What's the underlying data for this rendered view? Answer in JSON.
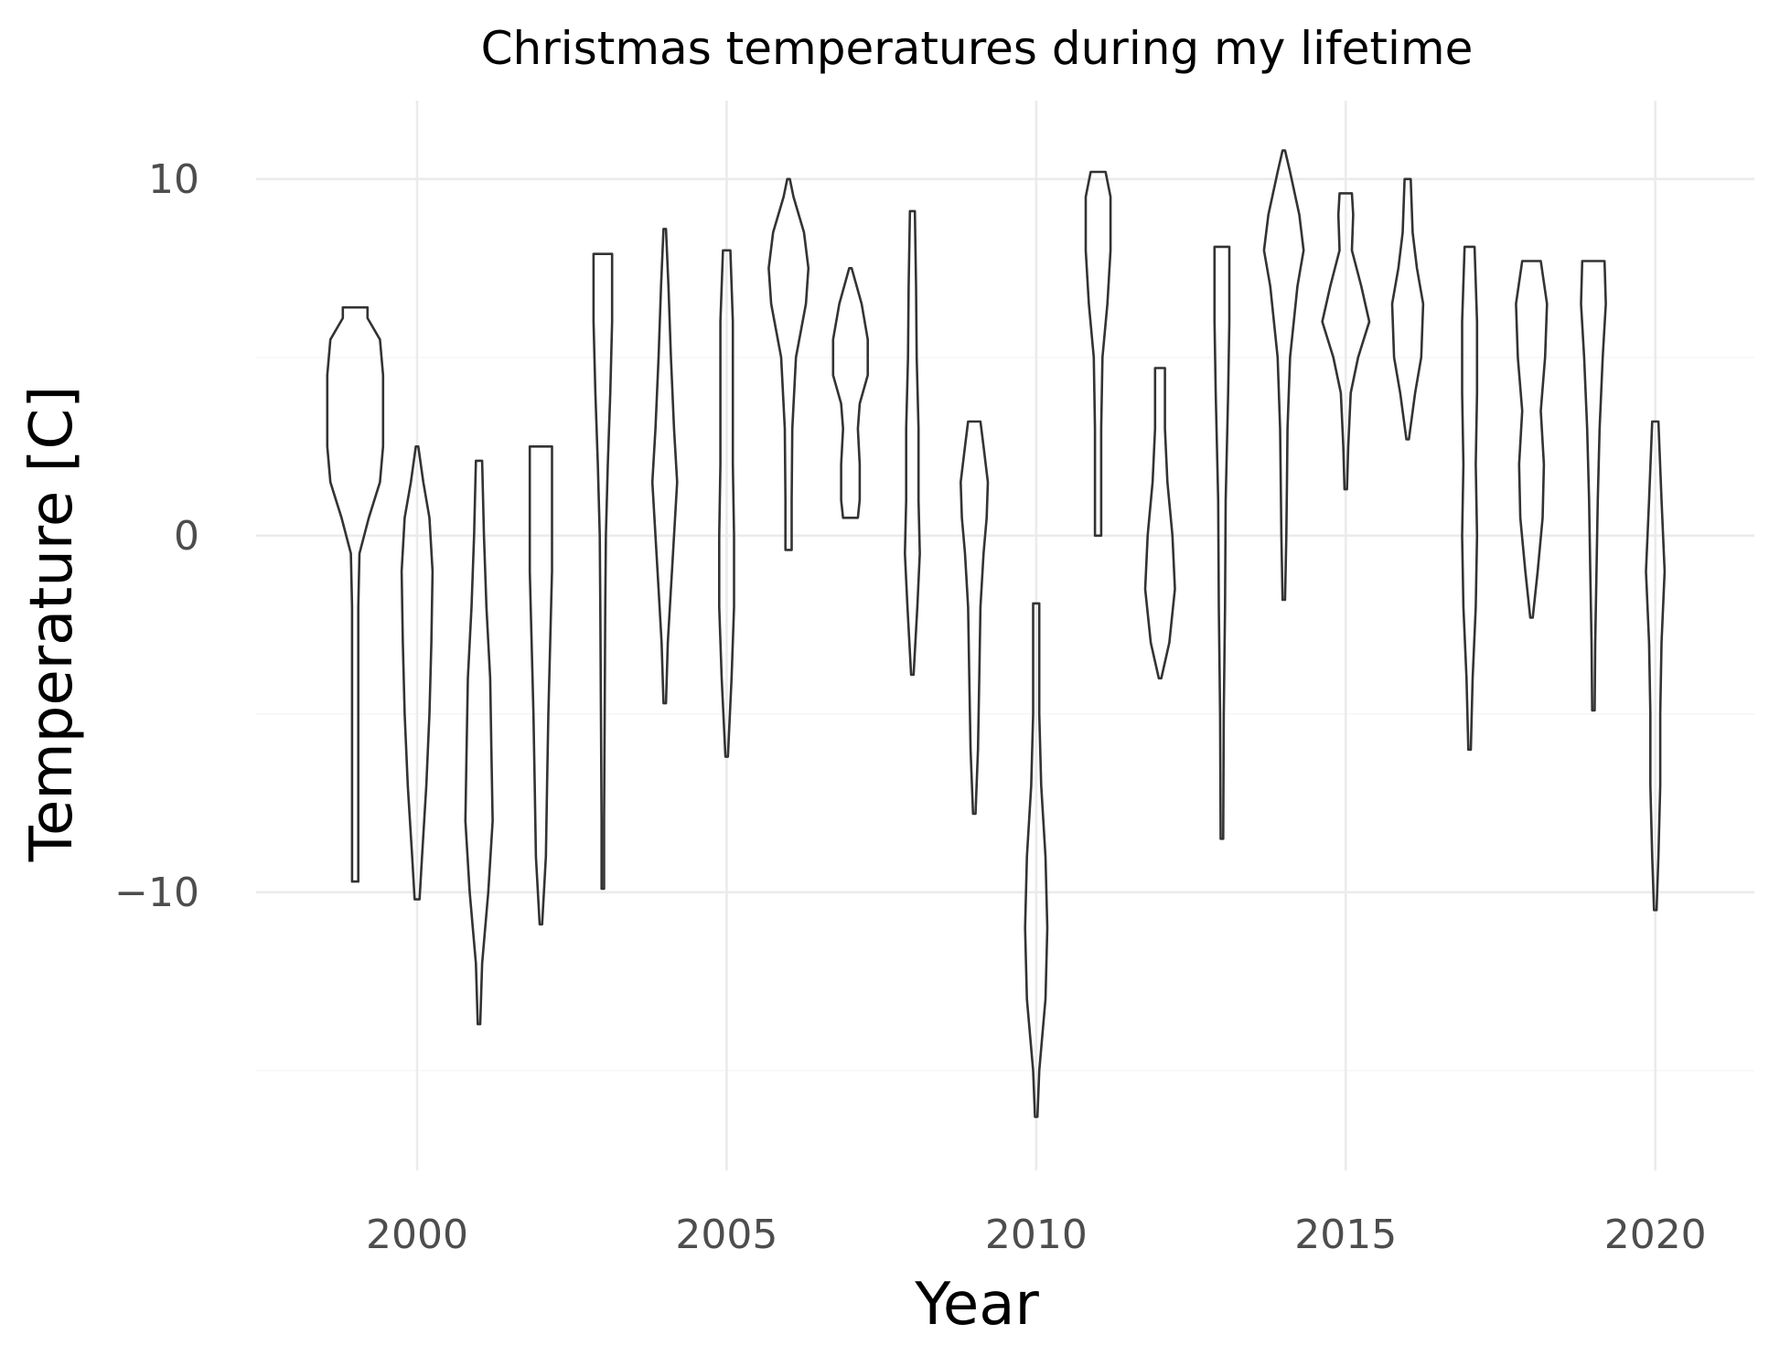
{
  "chart_data": {
    "type": "violin",
    "title": "Christmas temperatures during my lifetime",
    "xlabel": "Year",
    "ylabel": "Temperature [C]",
    "x_ticks": [
      2000,
      2005,
      2010,
      2015,
      2020
    ],
    "y_ticks": [
      -10,
      0,
      10
    ],
    "xlim": [
      1997.4,
      2021.6
    ],
    "ylim": [
      -17.8,
      12.2
    ],
    "grid": true,
    "series": [
      {
        "year": 1999,
        "min": -9.7,
        "max": 6.4,
        "profile": [
          [
            -9.7,
            0.05
          ],
          [
            -8,
            0.05
          ],
          [
            -6,
            0.05
          ],
          [
            -4,
            0.05
          ],
          [
            -2,
            0.05
          ],
          [
            -0.5,
            0.07
          ],
          [
            0.5,
            0.22
          ],
          [
            1.5,
            0.4
          ],
          [
            2.5,
            0.45
          ],
          [
            3.5,
            0.45
          ],
          [
            4.5,
            0.45
          ],
          [
            5.5,
            0.4
          ],
          [
            6.1,
            0.2
          ],
          [
            6.4,
            0.2
          ]
        ]
      },
      {
        "year": 2000,
        "min": -10.2,
        "max": 2.5,
        "profile": [
          [
            -10.2,
            0.04
          ],
          [
            -9,
            0.08
          ],
          [
            -7,
            0.15
          ],
          [
            -5,
            0.2
          ],
          [
            -3,
            0.23
          ],
          [
            -1,
            0.25
          ],
          [
            0.5,
            0.2
          ],
          [
            1.5,
            0.1
          ],
          [
            2.5,
            0.02
          ]
        ]
      },
      {
        "year": 2001,
        "min": -13.7,
        "max": 2.1,
        "profile": [
          [
            -13.7,
            0.02
          ],
          [
            -12,
            0.05
          ],
          [
            -10,
            0.15
          ],
          [
            -8,
            0.22
          ],
          [
            -6,
            0.2
          ],
          [
            -4,
            0.18
          ],
          [
            -2,
            0.12
          ],
          [
            0,
            0.08
          ],
          [
            2.1,
            0.05
          ]
        ]
      },
      {
        "year": 2002,
        "min": -10.9,
        "max": 2.5,
        "profile": [
          [
            -10.9,
            0.02
          ],
          [
            -9,
            0.08
          ],
          [
            -7,
            0.1
          ],
          [
            -5,
            0.12
          ],
          [
            -3,
            0.15
          ],
          [
            -1,
            0.18
          ],
          [
            1,
            0.18
          ],
          [
            2.5,
            0.18
          ]
        ]
      },
      {
        "year": 2003,
        "min": -9.9,
        "max": 7.9,
        "profile": [
          [
            -9.9,
            0.02
          ],
          [
            -8,
            0.02
          ],
          [
            -5,
            0.03
          ],
          [
            -2,
            0.04
          ],
          [
            0,
            0.05
          ],
          [
            2,
            0.08
          ],
          [
            4,
            0.12
          ],
          [
            6,
            0.15
          ],
          [
            7.9,
            0.15
          ]
        ]
      },
      {
        "year": 2004,
        "min": -4.7,
        "max": 8.6,
        "profile": [
          [
            -4.7,
            0.02
          ],
          [
            -3,
            0.05
          ],
          [
            -1.5,
            0.1
          ],
          [
            0,
            0.15
          ],
          [
            1.5,
            0.2
          ],
          [
            3,
            0.15
          ],
          [
            5,
            0.1
          ],
          [
            7,
            0.06
          ],
          [
            8.6,
            0.02
          ]
        ]
      },
      {
        "year": 2005,
        "min": -6.2,
        "max": 8.0,
        "profile": [
          [
            -6.2,
            0.02
          ],
          [
            -4,
            0.08
          ],
          [
            -2,
            0.12
          ],
          [
            0,
            0.12
          ],
          [
            2,
            0.1
          ],
          [
            4,
            0.1
          ],
          [
            6,
            0.1
          ],
          [
            8,
            0.06
          ]
        ]
      },
      {
        "year": 2006,
        "min": -0.4,
        "max": 10.0,
        "profile": [
          [
            -0.4,
            0.05
          ],
          [
            1,
            0.05
          ],
          [
            3,
            0.06
          ],
          [
            5,
            0.12
          ],
          [
            6.5,
            0.28
          ],
          [
            7.5,
            0.32
          ],
          [
            8.5,
            0.25
          ],
          [
            9.5,
            0.08
          ],
          [
            10,
            0.02
          ]
        ]
      },
      {
        "year": 2007,
        "min": 0.5,
        "max": 7.5,
        "profile": [
          [
            0.5,
            0.12
          ],
          [
            1,
            0.15
          ],
          [
            2,
            0.15
          ],
          [
            3,
            0.12
          ],
          [
            3.7,
            0.15
          ],
          [
            4.5,
            0.28
          ],
          [
            5.5,
            0.28
          ],
          [
            6.5,
            0.18
          ],
          [
            7.5,
            0.02
          ]
        ]
      },
      {
        "year": 2008,
        "min": -3.9,
        "max": 9.1,
        "profile": [
          [
            -3.9,
            0.02
          ],
          [
            -2,
            0.08
          ],
          [
            -0.5,
            0.12
          ],
          [
            1,
            0.1
          ],
          [
            3,
            0.1
          ],
          [
            5,
            0.07
          ],
          [
            7,
            0.06
          ],
          [
            9.1,
            0.04
          ]
        ]
      },
      {
        "year": 2009,
        "min": -7.8,
        "max": 3.2,
        "profile": [
          [
            -7.8,
            0.02
          ],
          [
            -6,
            0.06
          ],
          [
            -4,
            0.08
          ],
          [
            -2,
            0.1
          ],
          [
            -0.5,
            0.15
          ],
          [
            0.5,
            0.2
          ],
          [
            1.5,
            0.22
          ],
          [
            2.5,
            0.15
          ],
          [
            3.2,
            0.1
          ]
        ]
      },
      {
        "year": 2010,
        "min": -16.3,
        "max": -1.9,
        "profile": [
          [
            -16.3,
            0.02
          ],
          [
            -15,
            0.05
          ],
          [
            -13,
            0.15
          ],
          [
            -11,
            0.18
          ],
          [
            -9,
            0.15
          ],
          [
            -7,
            0.08
          ],
          [
            -5,
            0.05
          ],
          [
            -3,
            0.05
          ],
          [
            -1.9,
            0.05
          ]
        ]
      },
      {
        "year": 2011,
        "min": 0.0,
        "max": 10.2,
        "profile": [
          [
            0,
            0.05
          ],
          [
            1,
            0.05
          ],
          [
            3,
            0.05
          ],
          [
            5,
            0.07
          ],
          [
            6.5,
            0.15
          ],
          [
            8,
            0.2
          ],
          [
            9.5,
            0.2
          ],
          [
            10.2,
            0.12
          ]
        ]
      },
      {
        "year": 2012,
        "min": -4.0,
        "max": 4.7,
        "profile": [
          [
            -4,
            0.02
          ],
          [
            -3,
            0.15
          ],
          [
            -1.5,
            0.24
          ],
          [
            0,
            0.2
          ],
          [
            1.5,
            0.12
          ],
          [
            3,
            0.08
          ],
          [
            4.7,
            0.08
          ]
        ]
      },
      {
        "year": 2013,
        "min": -8.5,
        "max": 8.1,
        "profile": [
          [
            -8.5,
            0.02
          ],
          [
            -5,
            0.03
          ],
          [
            -2,
            0.05
          ],
          [
            1,
            0.06
          ],
          [
            4,
            0.1
          ],
          [
            6,
            0.12
          ],
          [
            8.1,
            0.12
          ]
        ]
      },
      {
        "year": 2014,
        "min": -1.8,
        "max": 10.8,
        "profile": [
          [
            -1.8,
            0.02
          ],
          [
            0,
            0.04
          ],
          [
            1.5,
            0.05
          ],
          [
            3,
            0.06
          ],
          [
            5,
            0.1
          ],
          [
            7,
            0.22
          ],
          [
            8,
            0.32
          ],
          [
            9,
            0.25
          ],
          [
            10.2,
            0.1
          ],
          [
            10.8,
            0.02
          ]
        ]
      },
      {
        "year": 2015,
        "min": 1.3,
        "max": 9.6,
        "profile": [
          [
            1.3,
            0.02
          ],
          [
            2.5,
            0.04
          ],
          [
            4,
            0.08
          ],
          [
            5,
            0.2
          ],
          [
            6,
            0.38
          ],
          [
            7,
            0.25
          ],
          [
            8,
            0.1
          ],
          [
            9,
            0.12
          ],
          [
            9.6,
            0.1
          ]
        ]
      },
      {
        "year": 2016,
        "min": 2.7,
        "max": 10.0,
        "profile": [
          [
            2.7,
            0.02
          ],
          [
            4,
            0.12
          ],
          [
            5,
            0.22
          ],
          [
            6.5,
            0.25
          ],
          [
            7.5,
            0.15
          ],
          [
            8.5,
            0.08
          ],
          [
            10,
            0.05
          ]
        ]
      },
      {
        "year": 2017,
        "min": -6.0,
        "max": 8.1,
        "profile": [
          [
            -6,
            0.02
          ],
          [
            -4,
            0.05
          ],
          [
            -2,
            0.1
          ],
          [
            0,
            0.12
          ],
          [
            2,
            0.1
          ],
          [
            4,
            0.12
          ],
          [
            6,
            0.12
          ],
          [
            8.1,
            0.08
          ]
        ]
      },
      {
        "year": 2018,
        "min": -2.3,
        "max": 7.7,
        "profile": [
          [
            -2.3,
            0.02
          ],
          [
            -1,
            0.1
          ],
          [
            0.5,
            0.18
          ],
          [
            2,
            0.2
          ],
          [
            3.5,
            0.15
          ],
          [
            5,
            0.22
          ],
          [
            6.5,
            0.25
          ],
          [
            7.7,
            0.15
          ]
        ]
      },
      {
        "year": 2019,
        "min": -4.9,
        "max": 7.7,
        "profile": [
          [
            -4.9,
            0.02
          ],
          [
            -3,
            0.03
          ],
          [
            -1,
            0.05
          ],
          [
            1,
            0.07
          ],
          [
            3,
            0.1
          ],
          [
            5,
            0.15
          ],
          [
            6.5,
            0.2
          ],
          [
            7.7,
            0.18
          ]
        ]
      },
      {
        "year": 2020,
        "min": -10.5,
        "max": 3.2,
        "profile": [
          [
            -10.5,
            0.02
          ],
          [
            -9,
            0.05
          ],
          [
            -7,
            0.08
          ],
          [
            -5,
            0.08
          ],
          [
            -3,
            0.1
          ],
          [
            -1,
            0.15
          ],
          [
            1,
            0.1
          ],
          [
            3.2,
            0.05
          ]
        ]
      }
    ]
  }
}
